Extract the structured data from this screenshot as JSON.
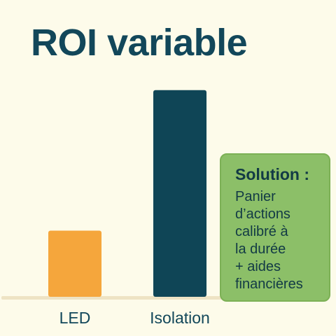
{
  "chart_data": {
    "type": "bar",
    "title": "ROI variable",
    "categories": [
      "LED",
      "Isolation"
    ],
    "values": [
      0.32,
      1.0
    ],
    "ylim": [
      0,
      1.05
    ],
    "colors": [
      "#f5a63c",
      "#0f4556"
    ],
    "axis_color": "#eee3c4",
    "label_color": "#12475a",
    "grid": false
  },
  "callout": {
    "title": "Solution :",
    "body": "Panier\nd’actions\ncalibré à\nla durée\n+ aides\nfinancières"
  }
}
